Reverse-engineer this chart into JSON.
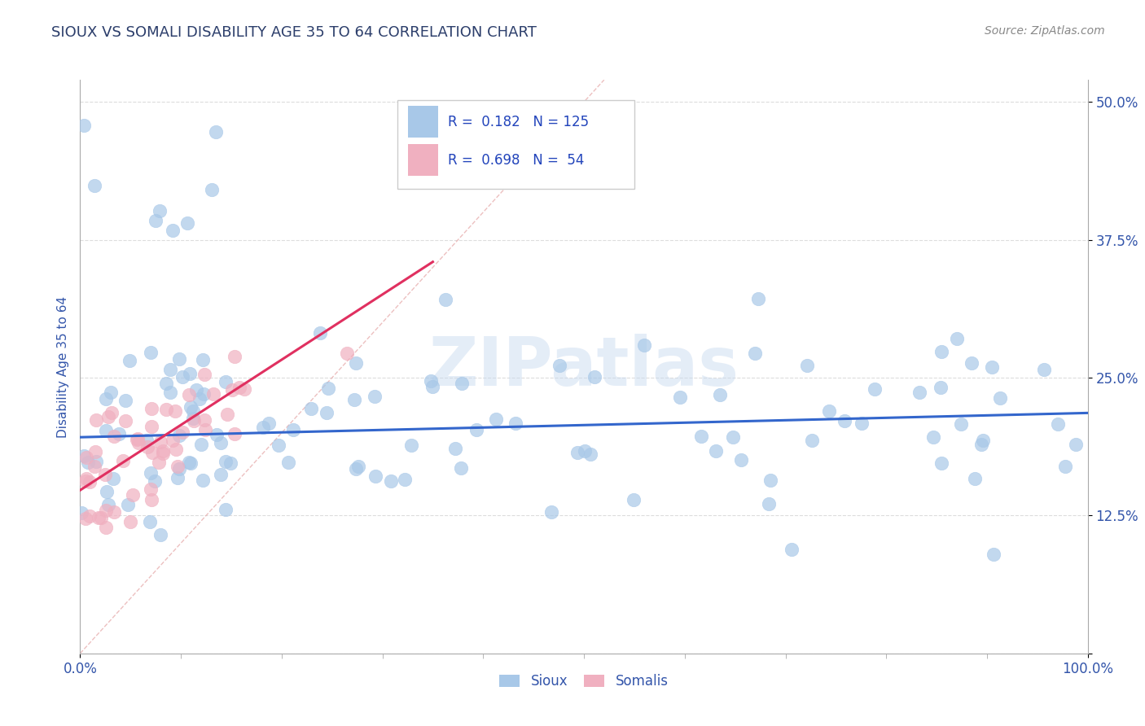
{
  "title": "SIOUX VS SOMALI DISABILITY AGE 35 TO 64 CORRELATION CHART",
  "ylabel": "Disability Age 35 to 64",
  "source_text": "Source: ZipAtlas.com",
  "watermark": "ZIPatlas",
  "sioux_R": 0.182,
  "sioux_N": 125,
  "somali_R": 0.698,
  "somali_N": 54,
  "sioux_color": "#a8c8e8",
  "somali_color": "#f0b0c0",
  "sioux_line_color": "#3366cc",
  "somali_line_color": "#e03060",
  "diagonal_color": "#e8b0b0",
  "title_color": "#2c3e6b",
  "axis_label_color": "#3355aa",
  "legend_text_color": "#2244bb",
  "background_color": "#ffffff",
  "grid_color": "#dddddd",
  "xlim": [
    0.0,
    1.0
  ],
  "ylim": [
    0.0,
    0.52
  ],
  "ytick_vals": [
    0.0,
    0.125,
    0.25,
    0.375,
    0.5
  ],
  "ytick_labels": [
    "",
    "12.5%",
    "25.0%",
    "37.5%",
    "50.0%"
  ],
  "sioux_trend_x": [
    0.0,
    1.0
  ],
  "sioux_trend_y": [
    0.196,
    0.218
  ],
  "somali_trend_x": [
    0.0,
    0.35
  ],
  "somali_trend_y": [
    0.148,
    0.355
  ]
}
